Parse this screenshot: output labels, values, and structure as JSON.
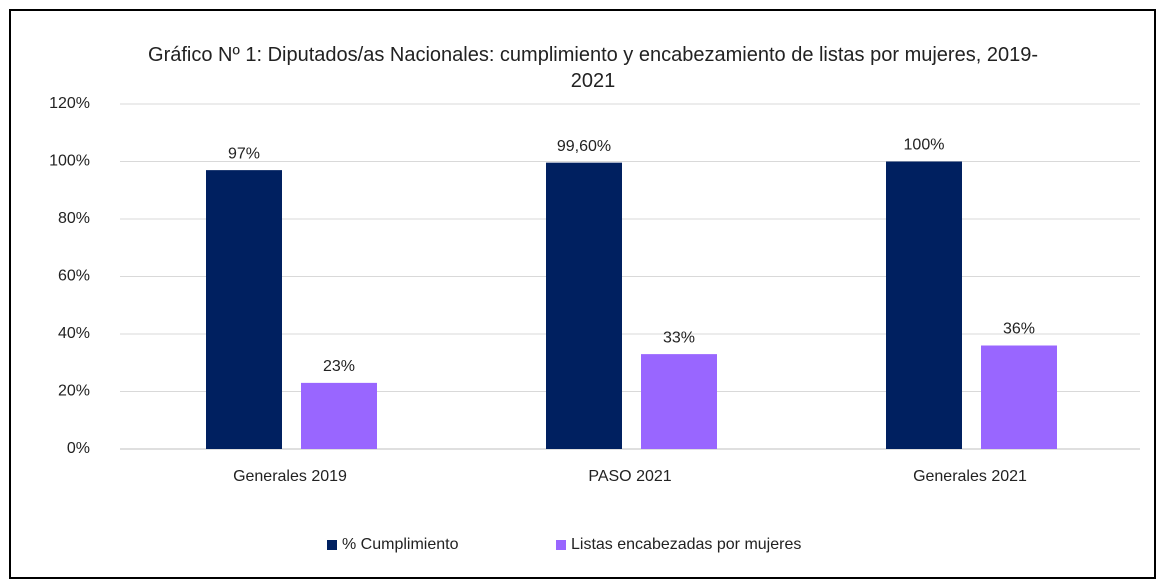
{
  "chart_data": {
    "type": "bar",
    "title": "Gráfico Nº 1: Diputados/as Nacionales: cumplimiento y encabezamiento de listas por mujeres, 2019-2021",
    "categories": [
      "Generales 2019",
      "PASO 2021",
      "Generales 2021"
    ],
    "series": [
      {
        "name": "% Cumplimiento",
        "color": "#002060",
        "values": [
          97,
          99.6,
          100
        ],
        "value_labels": [
          "97%",
          "99,60%",
          "100%"
        ]
      },
      {
        "name": "Listas encabezadas por mujeres",
        "color": "#9966ff",
        "values": [
          23,
          33,
          36
        ],
        "value_labels": [
          "23%",
          "33%",
          "36%"
        ]
      }
    ],
    "ylim": [
      0,
      120
    ],
    "yticks": [
      {
        "value": 0,
        "label": "0%"
      },
      {
        "value": 20,
        "label": "20%"
      },
      {
        "value": 40,
        "label": "40%"
      },
      {
        "value": 60,
        "label": "60%"
      },
      {
        "value": 80,
        "label": "80%"
      },
      {
        "value": 100,
        "label": "100%"
      },
      {
        "value": 120,
        "label": "120%"
      }
    ],
    "grid": true,
    "legend": "bottom"
  }
}
